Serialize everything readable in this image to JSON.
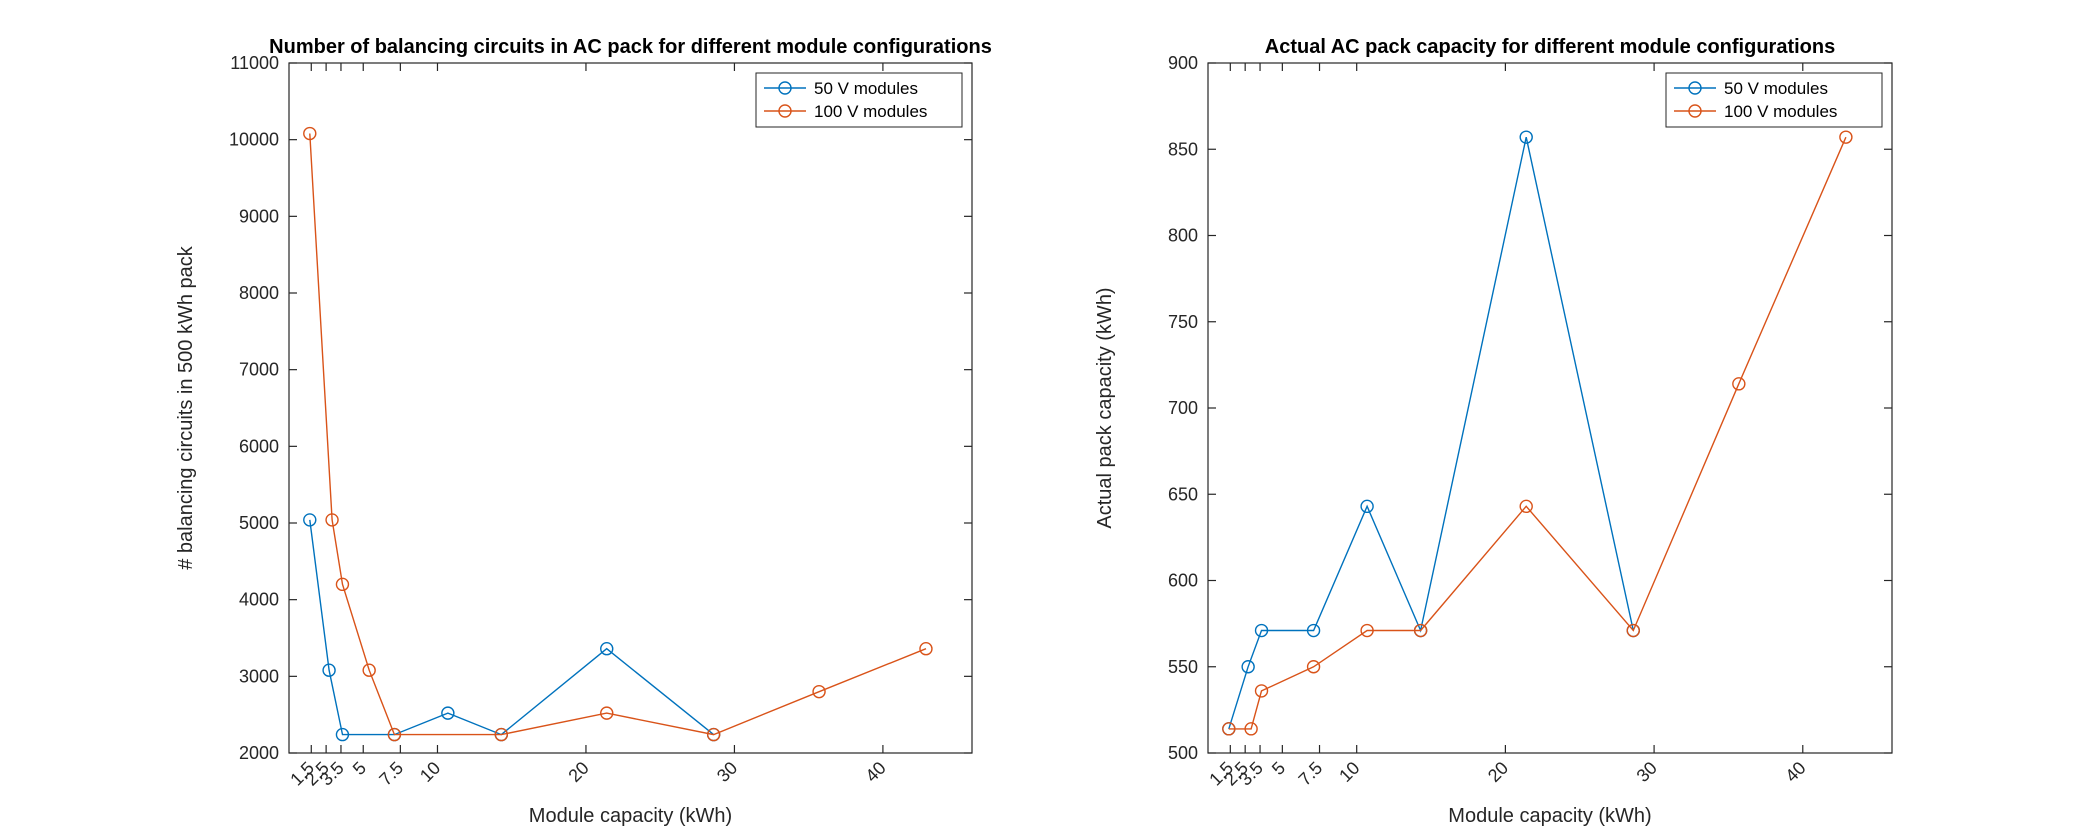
{
  "chart_data": [
    {
      "type": "line",
      "title": "Number of balancing circuits in AC pack for different module configurations",
      "xlabel": "Module capacity (kWh)",
      "ylabel": "# balancing circuits in 500 kWh pack",
      "xlim": [
        0,
        46
      ],
      "ylim": [
        2000,
        11000
      ],
      "xticks": [
        1.5,
        2.5,
        3.5,
        5,
        7.5,
        10,
        20,
        30,
        40
      ],
      "xtick_labels": [
        "1.5",
        "2.5",
        "3.5",
        "5",
        "7.5",
        "10",
        "20",
        "30",
        "40"
      ],
      "yticks": [
        2000,
        3000,
        4000,
        5000,
        6000,
        7000,
        8000,
        9000,
        10000,
        11000
      ],
      "ytick_labels": [
        "2000",
        "3000",
        "4000",
        "5000",
        "6000",
        "7000",
        "8000",
        "9000",
        "10000",
        "11000"
      ],
      "legend_position": "top-right",
      "series": [
        {
          "name": "50 V modules",
          "color": "#0072BD",
          "x": [
            1.4,
            2.7,
            3.6,
            7.1,
            10.7,
            14.3,
            21.4,
            28.6
          ],
          "y": [
            5040,
            3080,
            2240,
            2240,
            2520,
            2240,
            3360,
            2240
          ]
        },
        {
          "name": "100 V modules",
          "color": "#D95319",
          "x": [
            1.4,
            2.9,
            3.6,
            5.4,
            7.1,
            14.3,
            21.4,
            28.6,
            35.7,
            42.9
          ],
          "y": [
            10080,
            5040,
            4200,
            3080,
            2240,
            2240,
            2520,
            2240,
            2800,
            3360
          ]
        }
      ]
    },
    {
      "type": "line",
      "title": "Actual AC pack capacity for different module configurations",
      "xlabel": "Module capacity (kWh)",
      "ylabel": "Actual pack capacity (kWh)",
      "xlim": [
        0,
        46
      ],
      "ylim": [
        500,
        900
      ],
      "xticks": [
        1.5,
        2.5,
        3.5,
        5,
        7.5,
        10,
        20,
        30,
        40
      ],
      "xtick_labels": [
        "1.5",
        "2.5",
        "3.5",
        "5",
        "7.5",
        "10",
        "20",
        "30",
        "40"
      ],
      "yticks": [
        500,
        550,
        600,
        650,
        700,
        750,
        800,
        850,
        900
      ],
      "ytick_labels": [
        "500",
        "550",
        "600",
        "650",
        "700",
        "750",
        "800",
        "850",
        "900"
      ],
      "legend_position": "top-right",
      "series": [
        {
          "name": "50 V modules",
          "color": "#0072BD",
          "x": [
            1.4,
            2.7,
            3.6,
            7.1,
            10.7,
            14.3,
            21.4,
            28.6
          ],
          "y": [
            514,
            550,
            571,
            571,
            643,
            571,
            857,
            571
          ]
        },
        {
          "name": "100 V modules",
          "color": "#D95319",
          "x": [
            1.4,
            2.9,
            3.6,
            7.1,
            10.7,
            14.3,
            21.4,
            28.6,
            35.7,
            42.9
          ],
          "y": [
            514,
            514,
            536,
            550,
            571,
            571,
            643,
            571,
            714,
            857
          ]
        }
      ]
    }
  ]
}
